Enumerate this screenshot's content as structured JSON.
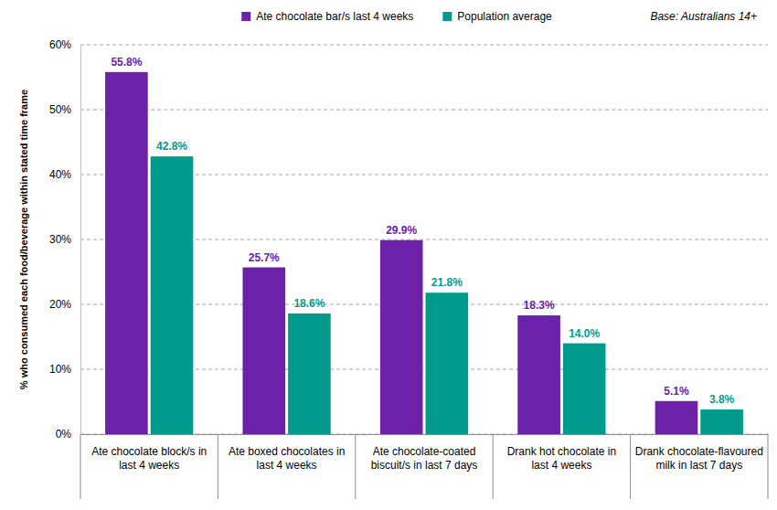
{
  "chart_data": {
    "type": "bar",
    "annotations": [
      "Base: Australians 14+"
    ],
    "y_label": "% who consumed each food/beverage within stated time frame",
    "categories": [
      "Ate chocolate block/s in last 4 weeks",
      "Ate boxed chocolates in last 4 weeks",
      "Ate chocolate-coated biscuit/s in last 7 days",
      "Drank hot chocolate in last 4 weeks",
      "Drank chocolate-flavoured milk in last 7 days"
    ],
    "series": [
      {
        "name": "Ate chocolate bar/s last 4 weeks",
        "color": "#6b21a8",
        "values": [
          55.8,
          25.7,
          29.9,
          18.3,
          5.1
        ],
        "value_labels": [
          "55.8%",
          "25.7%",
          "29.9%",
          "18.3%",
          "5.1%"
        ]
      },
      {
        "name": "Population average",
        "color": "#009b8c",
        "values": [
          42.8,
          18.6,
          21.8,
          14.0,
          3.8
        ],
        "value_labels": [
          "42.8%",
          "18.6%",
          "21.8%",
          "14.0%",
          "3.8%"
        ]
      }
    ],
    "ylim": [
      0,
      60
    ],
    "yticks": [
      {
        "value": 0,
        "label": "0%"
      },
      {
        "value": 10,
        "label": "10%"
      },
      {
        "value": 20,
        "label": "20%"
      },
      {
        "value": 30,
        "label": "30%"
      },
      {
        "value": 40,
        "label": "40%"
      },
      {
        "value": 50,
        "label": "50%"
      },
      {
        "value": 60,
        "label": "60%"
      }
    ],
    "grid": true,
    "legend": "top",
    "data_labels": true
  }
}
